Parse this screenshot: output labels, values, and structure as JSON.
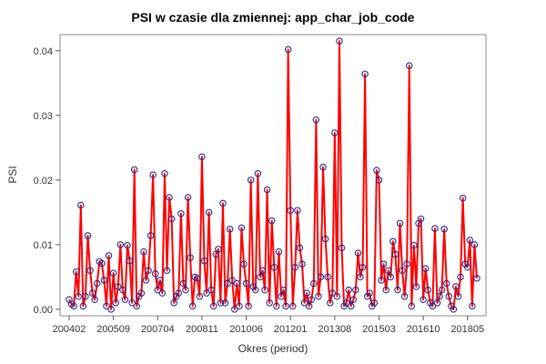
{
  "chart_data": {
    "type": "line",
    "title": "PSI w czasie dla zmiennej: app_char_job_code",
    "xlabel": "Okres (period)",
    "ylabel": "PSI",
    "ylim": [
      -0.001,
      0.0425
    ],
    "y_ticks": [
      0.0,
      0.01,
      0.02,
      0.03,
      0.04
    ],
    "y_tick_labels": [
      "0.00",
      "0.01",
      "0.02",
      "0.03",
      "0.04"
    ],
    "x_start": "200402",
    "x_ticks": [
      "200402",
      "200509",
      "200704",
      "200811",
      "201006",
      "201201",
      "201308",
      "201503",
      "201610",
      "201805"
    ],
    "x_tick_index": [
      0,
      19,
      38,
      57,
      76,
      95,
      114,
      133,
      152,
      171
    ],
    "grid": false,
    "legend": "none",
    "line_color": "#ff0000",
    "marker_color": "#2a2a8f",
    "series": [
      {
        "values": [
          0.0015,
          0.0008,
          0.0005,
          0.0058,
          0.002,
          0.0161,
          0.0005,
          0.002,
          0.0114,
          0.006,
          0.0025,
          0.0015,
          0.004,
          0.0074,
          0.0071,
          0.0045,
          0.0005,
          0.0083,
          0.0,
          0.0056,
          0.001,
          0.0035,
          0.01,
          0.003,
          0.0015,
          0.0099,
          0.0075,
          0.001,
          0.0216,
          0.0005,
          0.002,
          0.0025,
          0.0089,
          0.0045,
          0.006,
          0.0114,
          0.0208,
          0.0055,
          0.003,
          0.0045,
          0.0025,
          0.021,
          0.006,
          0.0173,
          0.014,
          0.001,
          0.002,
          0.0025,
          0.0148,
          0.004,
          0.003,
          0.0173,
          0.008,
          0.0005,
          0.005,
          0.0048,
          0.002,
          0.0236,
          0.0075,
          0.0025,
          0.015,
          0.003,
          0.0005,
          0.0085,
          0.0093,
          0.001,
          0.0164,
          0.001,
          0.004,
          0.0124,
          0.0045,
          0.0,
          0.004,
          0.0005,
          0.0126,
          0.007,
          0.004,
          0.0005,
          0.02,
          0.0035,
          0.003,
          0.021,
          0.005,
          0.006,
          0.003,
          0.0185,
          0.001,
          0.0137,
          0.0065,
          0.0005,
          0.0089,
          0.002,
          0.003,
          0.0005,
          0.0402,
          0.0153,
          0.0005,
          0.0065,
          0.0153,
          0.0095,
          0.007,
          0.001,
          0.0025,
          0.0005,
          0.0015,
          0.004,
          0.0293,
          0.002,
          0.005,
          0.022,
          0.0109,
          0.005,
          0.001,
          0.0025,
          0.0273,
          0.002,
          0.0415,
          0.0095,
          0.0005,
          0.001,
          0.003,
          0.0005,
          0.0015,
          0.003,
          0.0087,
          0.005,
          0.0065,
          0.0364,
          0.002,
          0.0025,
          0.0005,
          0.001,
          0.0215,
          0.02,
          0.0045,
          0.007,
          0.003,
          0.006,
          0.005,
          0.0105,
          0.0085,
          0.003,
          0.0133,
          0.006,
          0.002,
          0.007,
          0.0377,
          0.0005,
          0.0099,
          0.0035,
          0.0133,
          0.014,
          0.0015,
          0.0063,
          0.003,
          0.001,
          0.0005,
          0.0125,
          0.001,
          0.002,
          0.003,
          0.0124,
          0.004,
          0.002,
          0.0005,
          0.0,
          0.0035,
          0.002,
          0.005,
          0.0172,
          0.007,
          0.0065,
          0.0107,
          0.0005,
          0.01,
          0.0048
        ]
      }
    ]
  }
}
